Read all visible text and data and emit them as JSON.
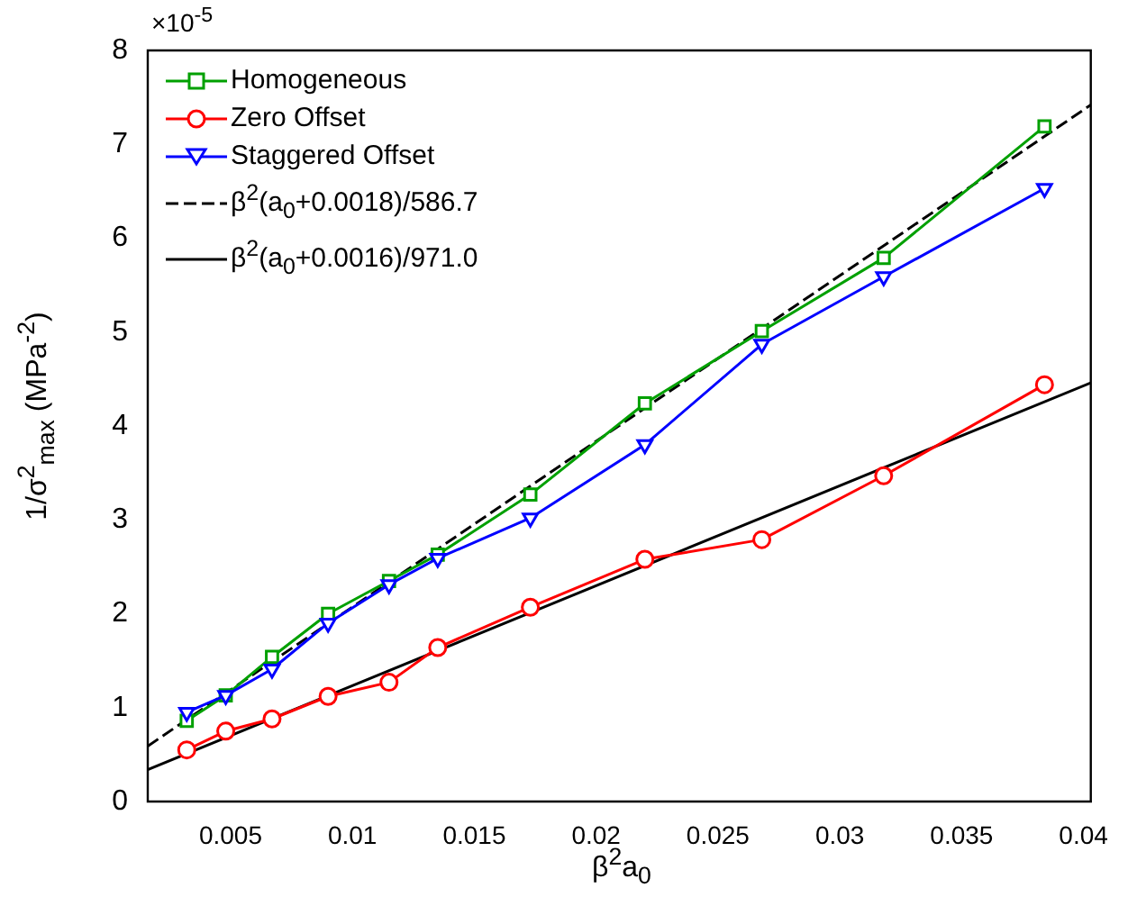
{
  "chart_data": {
    "type": "line",
    "xlabel": "β$^{2}$a$_{0}$",
    "ylabel": "1/σ$^{2}$$_{max}$ (MPa$^{-2}$)",
    "annotations": [
      "×10$^{-5}$"
    ],
    "xlim": [
      0.0016,
      0.0403
    ],
    "xticks": [
      0.005,
      0.01,
      0.015,
      0.02,
      0.025,
      0.03,
      0.035,
      0.04
    ],
    "ylim": [
      0,
      8
    ],
    "yticks": [
      0,
      1,
      2,
      3,
      4,
      5,
      6,
      7,
      8
    ],
    "grid": false,
    "legend": "top left",
    "line_style": "solid",
    "series": [
      {
        "name": "Homogeneous",
        "color": "#00a000",
        "marker": "square",
        "x": [
          0.0032,
          0.0048,
          0.0067,
          0.009,
          0.0115,
          0.0135,
          0.0173,
          0.022,
          0.0268,
          0.0318,
          0.0384
        ],
        "values": [
          0.86,
          1.13,
          1.54,
          2.0,
          2.35,
          2.63,
          3.27,
          4.24,
          5.01,
          5.79,
          7.19
        ]
      },
      {
        "name": "Zero Offset",
        "color": "#ff0000",
        "marker": "circle",
        "x": [
          0.0032,
          0.0048,
          0.0067,
          0.009,
          0.0115,
          0.0135,
          0.0173,
          0.022,
          0.0268,
          0.0318,
          0.0384
        ],
        "values": [
          0.55,
          0.75,
          0.88,
          1.12,
          1.27,
          1.64,
          2.07,
          2.58,
          2.79,
          3.47,
          4.44
        ]
      },
      {
        "name": "Staggered Offset",
        "color": "#0000ff",
        "marker": "triangle",
        "x": [
          0.0032,
          0.0048,
          0.0067,
          0.009,
          0.0115,
          0.0135,
          0.0173,
          0.022,
          0.0268,
          0.0318,
          0.0384
        ],
        "values": [
          0.95,
          1.13,
          1.41,
          1.9,
          2.31,
          2.59,
          3.02,
          3.8,
          4.87,
          5.59,
          6.53
        ]
      },
      {
        "name": "β$^{2}$(a$_{0}$+0.0018)/586.7",
        "color": "#000000",
        "marker": "none",
        "line_style": "dashed",
        "x": [
          0.0016,
          0.0403
        ],
        "values": [
          0.59,
          7.42
        ]
      },
      {
        "name": "β$^{2}$(a$_{0}$+0.0016)/971.0",
        "color": "#000000",
        "marker": "none",
        "line_style": "solid",
        "x": [
          0.0016,
          0.0403
        ],
        "values": [
          0.34,
          4.46
        ]
      }
    ]
  }
}
